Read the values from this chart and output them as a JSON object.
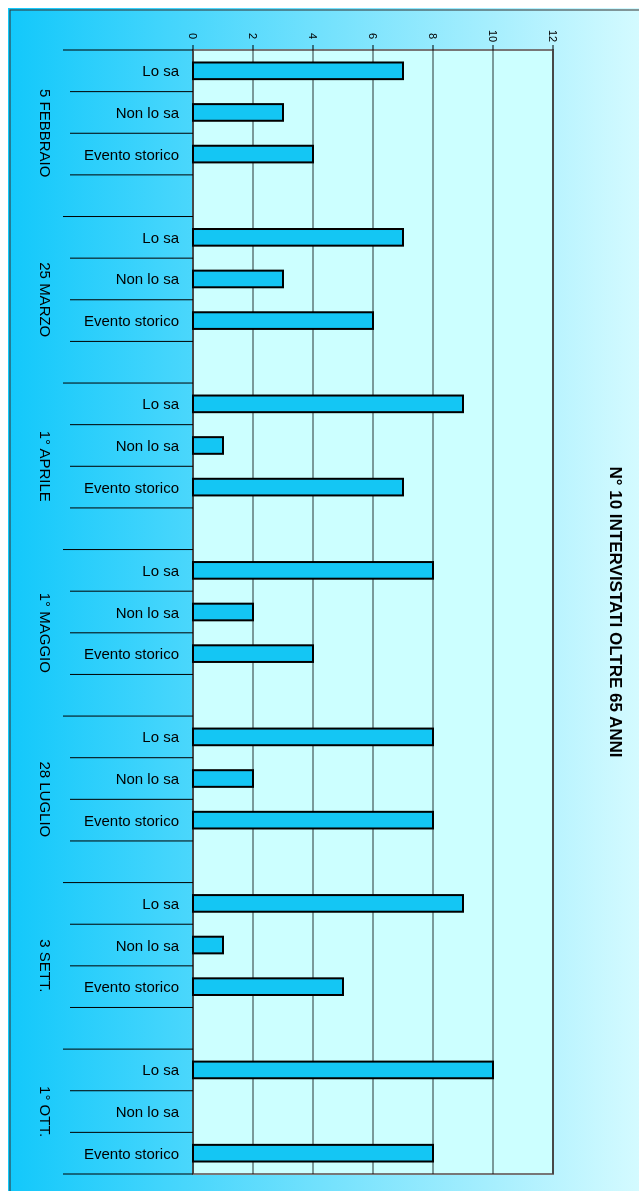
{
  "chart_data": {
    "type": "bar",
    "orientation": "horizontal",
    "title": "N° 10 INTERVISTATI OLTRE 65 ANNI",
    "categories": [
      "Lo sa",
      "Non lo sa",
      "Evento storico",
      null,
      "Lo sa",
      "Non lo sa",
      "Evento storico",
      null,
      "Lo sa",
      "Non lo sa",
      "Evento storico",
      null,
      "Lo sa",
      "Non lo sa",
      "Evento storico",
      null,
      "Lo sa",
      "Non lo sa",
      "Evento storico",
      null,
      "Lo sa",
      "Non lo sa",
      "Evento storico",
      null,
      "Lo sa",
      "Non lo sa",
      "Evento storico"
    ],
    "values": [
      7,
      3,
      4,
      null,
      7,
      3,
      6,
      null,
      9,
      1,
      7,
      null,
      8,
      2,
      4,
      null,
      8,
      2,
      8,
      null,
      9,
      1,
      5,
      null,
      10,
      0,
      8
    ],
    "color": "#14c6f4",
    "annotations": [
      "5 FEBBRAIO",
      "25 MARZO",
      "1° APRILE",
      "1° MAGGIO",
      "28 LUGLIO",
      "3 SETT.",
      "1° OTT."
    ],
    "xlim": [
      0,
      12
    ],
    "xticks": [
      0,
      2,
      4,
      6,
      8,
      10,
      12
    ],
    "grid": "x"
  }
}
